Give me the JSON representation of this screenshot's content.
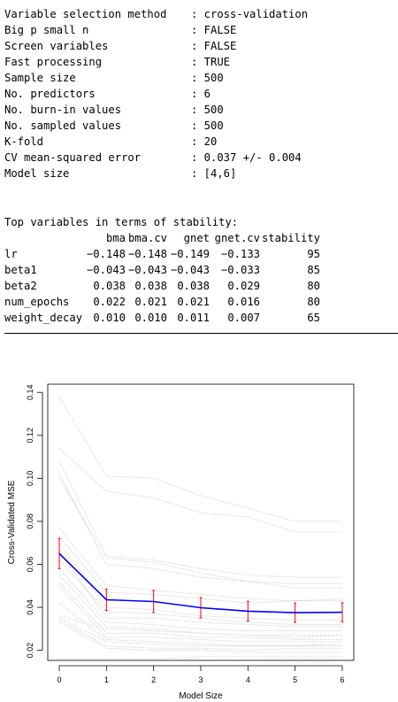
{
  "summary": {
    "rows": [
      {
        "key": "Variable selection method",
        "value": ": cross-validation"
      },
      {
        "key": "Big p small n",
        "value": ": FALSE"
      },
      {
        "key": "Screen variables",
        "value": ": FALSE"
      },
      {
        "key": "Fast processing",
        "value": ": TRUE"
      },
      {
        "key": "Sample size",
        "value": ": 500"
      },
      {
        "key": "No. predictors",
        "value": ": 6"
      },
      {
        "key": "No. burn-in values",
        "value": ": 500"
      },
      {
        "key": "No. sampled values",
        "value": ": 500"
      },
      {
        "key": "K-fold",
        "value": ": 20"
      },
      {
        "key": "CV mean-squared error",
        "value": ": 0.037 +/- 0.004"
      },
      {
        "key": "Model size",
        "value": ": [4,6]"
      }
    ]
  },
  "stability": {
    "title": "Top variables in terms of stability:",
    "columns": [
      "bma",
      "bma.cv",
      "gnet",
      "gnet.cv",
      "stability"
    ],
    "rows": [
      {
        "name": "lr",
        "cells": [
          "−0.148",
          "−0.148",
          "−0.149",
          "−0.133",
          "95"
        ]
      },
      {
        "name": "beta1",
        "cells": [
          "−0.043",
          "−0.043",
          "−0.043",
          "−0.033",
          "85"
        ]
      },
      {
        "name": "beta2",
        "cells": [
          "0.038",
          "0.038",
          "0.038",
          "0.029",
          "80"
        ]
      },
      {
        "name": "num_epochs",
        "cells": [
          "0.022",
          "0.021",
          "0.021",
          "0.016",
          "80"
        ]
      },
      {
        "name": "weight_decay",
        "cells": [
          "0.010",
          "0.010",
          "0.011",
          "0.007",
          "65"
        ]
      }
    ]
  },
  "chart_data": {
    "type": "line",
    "xlabel": "Model Size",
    "ylabel": "Cross-Validated MSE",
    "x": [
      0,
      1,
      2,
      3,
      4,
      5,
      6
    ],
    "xticks": [
      "0",
      "1",
      "2",
      "3",
      "4",
      "5",
      "6"
    ],
    "yticks": [
      "0.02",
      "0.04",
      "0.06",
      "0.08",
      "0.10",
      "0.12",
      "0.14"
    ],
    "xlim": [
      0,
      6
    ],
    "ylim": [
      0.0153,
      0.1438
    ],
    "grid": false,
    "colors": {
      "mean": "#0000ff",
      "error": "#ff0000",
      "folds": "#c8c8c8"
    },
    "mean_series": {
      "values": [
        0.065,
        0.0435,
        0.0427,
        0.0398,
        0.0382,
        0.0375,
        0.0377
      ],
      "lower": [
        0.058,
        0.0385,
        0.0376,
        0.0351,
        0.0336,
        0.033,
        0.0333
      ],
      "upper": [
        0.072,
        0.0485,
        0.0478,
        0.0445,
        0.0428,
        0.042,
        0.0421
      ]
    },
    "fold_series": [
      [
        0.138,
        0.101,
        0.1,
        0.092,
        0.086,
        0.08,
        0.08
      ],
      [
        0.114,
        0.094,
        0.091,
        0.084,
        0.082,
        0.075,
        0.075
      ],
      [
        0.108,
        0.064,
        0.062,
        0.058,
        0.055,
        0.054,
        0.054
      ],
      [
        0.102,
        0.06,
        0.058,
        0.054,
        0.052,
        0.051,
        0.051
      ],
      [
        0.1,
        0.063,
        0.061,
        0.056,
        0.052,
        0.049,
        0.049
      ],
      [
        0.077,
        0.05,
        0.048,
        0.046,
        0.044,
        0.043,
        0.044
      ],
      [
        0.073,
        0.047,
        0.046,
        0.044,
        0.042,
        0.043,
        0.043
      ],
      [
        0.07,
        0.04,
        0.039,
        0.036,
        0.035,
        0.034,
        0.034
      ],
      [
        0.066,
        0.035,
        0.035,
        0.033,
        0.032,
        0.031,
        0.031
      ],
      [
        0.062,
        0.038,
        0.037,
        0.035,
        0.033,
        0.032,
        0.032
      ],
      [
        0.058,
        0.033,
        0.032,
        0.03,
        0.029,
        0.029,
        0.029
      ],
      [
        0.055,
        0.031,
        0.03,
        0.028,
        0.027,
        0.027,
        0.027
      ],
      [
        0.052,
        0.028,
        0.028,
        0.026,
        0.026,
        0.025,
        0.025
      ],
      [
        0.05,
        0.026,
        0.026,
        0.025,
        0.024,
        0.024,
        0.024
      ],
      [
        0.042,
        0.025,
        0.024,
        0.023,
        0.022,
        0.022,
        0.022
      ],
      [
        0.036,
        0.03,
        0.029,
        0.028,
        0.027,
        0.026,
        0.027
      ],
      [
        0.035,
        0.024,
        0.023,
        0.022,
        0.022,
        0.022,
        0.023
      ],
      [
        0.034,
        0.022,
        0.021,
        0.021,
        0.02,
        0.021,
        0.021
      ],
      [
        0.033,
        0.021,
        0.02,
        0.02,
        0.019,
        0.019,
        0.019
      ],
      [
        0.016,
        0.016,
        0.016,
        0.017,
        0.017,
        0.017,
        0.017
      ]
    ]
  }
}
